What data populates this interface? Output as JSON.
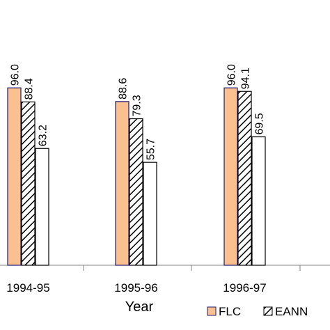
{
  "chart_data": {
    "type": "bar",
    "title": "",
    "xlabel": "Year",
    "ylabel": "",
    "categories": [
      "1994-95",
      "1995-96",
      "1996-97"
    ],
    "series": [
      {
        "name": "FLC",
        "values": [
          96.0,
          88.6,
          96.0
        ],
        "labels": [
          "96.0",
          "88.6",
          "96.0"
        ],
        "style": "solid",
        "fill": "#FAC090",
        "stroke": "#1F1A6E"
      },
      {
        "name": "EANN",
        "values": [
          88.4,
          79.3,
          94.1
        ],
        "labels": [
          "88.4",
          "79.3",
          "94.1"
        ],
        "style": "hatch",
        "fill": "#FFFFFF",
        "stroke": "#000000"
      },
      {
        "name": "",
        "values": [
          63.2,
          55.7,
          69.5
        ],
        "labels": [
          "63.2",
          "55.7",
          "69.5"
        ],
        "style": "solid",
        "fill": "#FFFFFF",
        "stroke": "#000000"
      }
    ],
    "ylim": [
      0,
      100
    ],
    "grid": false,
    "legend": {
      "position": "bottom-right"
    }
  }
}
